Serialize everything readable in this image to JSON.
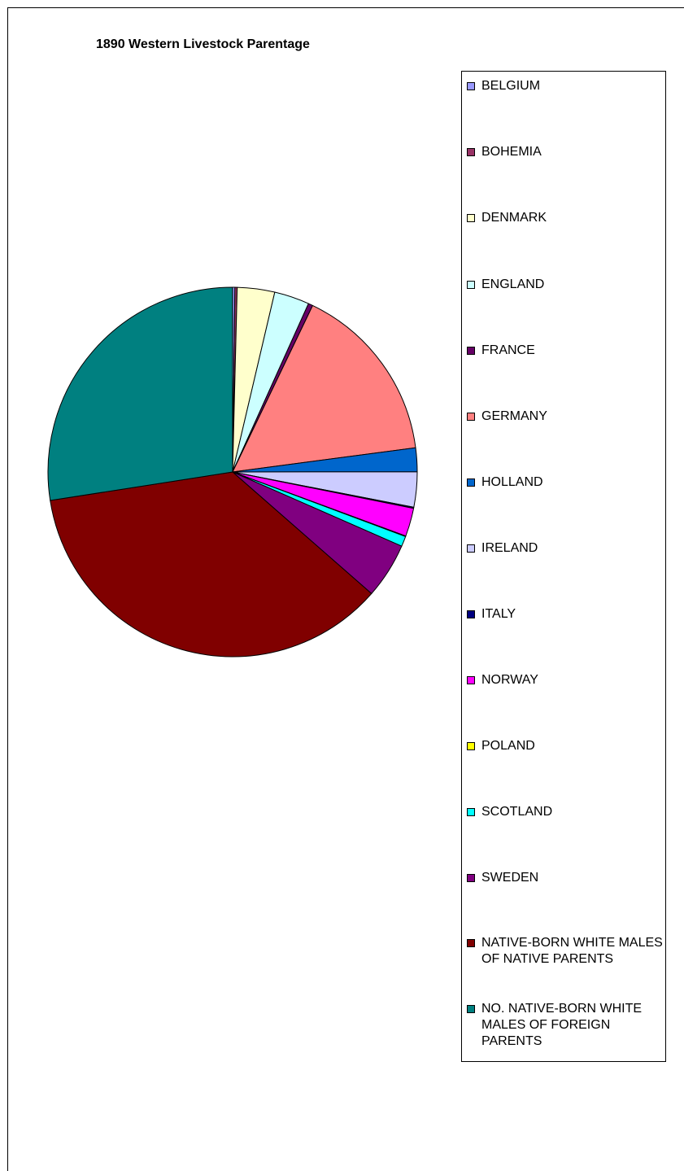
{
  "chart_data": {
    "type": "pie",
    "title": "1890 Western Livestock Parentage",
    "series": [
      {
        "name": "BELGIUM",
        "value": 0.2,
        "color": "#9999FF"
      },
      {
        "name": "BOHEMIA",
        "value": 0.2,
        "color": "#993366"
      },
      {
        "name": "DENMARK",
        "value": 3.3,
        "color": "#FFFFCC"
      },
      {
        "name": "ENGLAND",
        "value": 3.1,
        "color": "#CCFFFF"
      },
      {
        "name": "FRANCE",
        "value": 0.4,
        "color": "#660066"
      },
      {
        "name": "GERMANY",
        "value": 15.9,
        "color": "#FF8080"
      },
      {
        "name": "HOLLAND",
        "value": 2.1,
        "color": "#0066CC"
      },
      {
        "name": "IRELAND",
        "value": 3.1,
        "color": "#CCCCFF"
      },
      {
        "name": "ITALY",
        "value": 0.1,
        "color": "#000080"
      },
      {
        "name": "NORWAY",
        "value": 2.5,
        "color": "#FF00FF"
      },
      {
        "name": "POLAND",
        "value": 0.05,
        "color": "#FFFF00"
      },
      {
        "name": "SCOTLAND",
        "value": 0.9,
        "color": "#00FFFF"
      },
      {
        "name": "SWEDEN",
        "value": 4.9,
        "color": "#800080"
      },
      {
        "name": "NATIVE-BORN WHITE MALES OF NATIVE PARENTS",
        "value": 36.4,
        "color": "#800000"
      },
      {
        "name": "NO. NATIVE-BORN WHITE MALES OF FOREIGN PARENTS",
        "value": 27.7,
        "color": "#008080"
      }
    ],
    "legend_position": "right",
    "start_angle": "top",
    "direction": "clockwise"
  }
}
